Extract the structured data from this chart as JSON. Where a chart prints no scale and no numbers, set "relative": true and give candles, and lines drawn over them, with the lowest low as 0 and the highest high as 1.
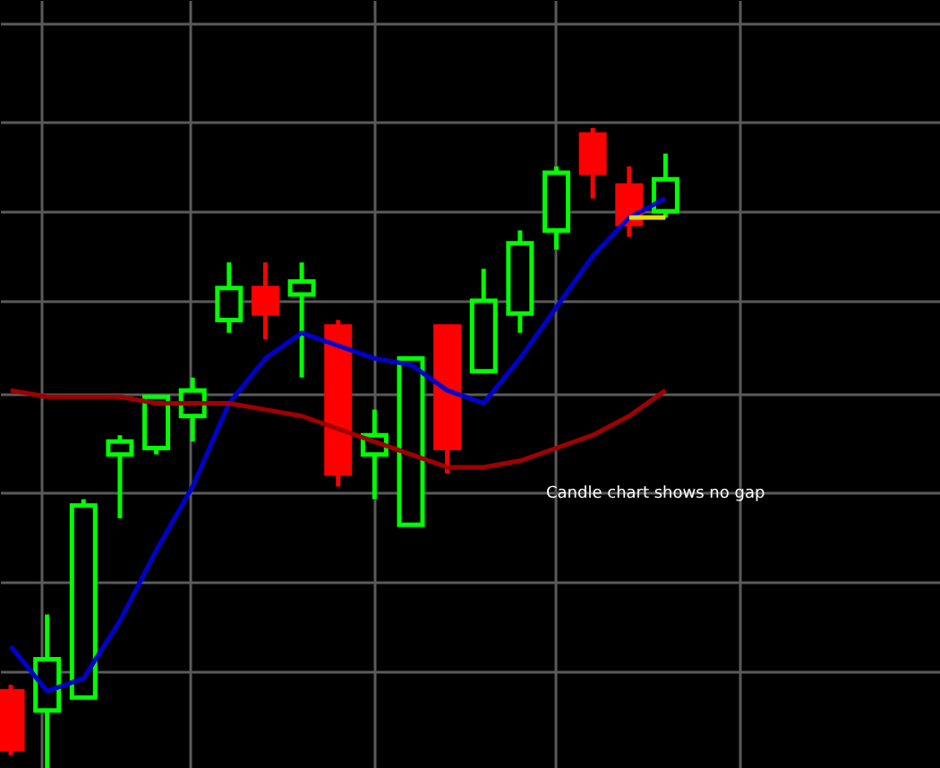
{
  "chart_data": {
    "type": "candlestick",
    "relative": true,
    "grid": true,
    "categories": [
      null,
      null,
      null,
      null,
      null,
      null,
      null,
      null,
      null,
      null,
      null,
      null,
      null,
      null,
      null,
      null,
      null,
      null,
      null
    ],
    "ohlc": [
      [
        0.12,
        0.13,
        0.02,
        0.03
      ],
      [
        0.09,
        0.24,
        0.0,
        0.17
      ],
      [
        0.11,
        0.42,
        0.11,
        0.41
      ],
      [
        0.49,
        0.52,
        0.39,
        0.51
      ],
      [
        0.5,
        0.58,
        0.49,
        0.58
      ],
      [
        0.55,
        0.61,
        0.51,
        0.59
      ],
      [
        0.7,
        0.79,
        0.68,
        0.75
      ],
      [
        0.75,
        0.79,
        0.67,
        0.71
      ],
      [
        0.74,
        0.79,
        0.61,
        0.76
      ],
      [
        0.69,
        0.7,
        0.44,
        0.46
      ],
      [
        0.49,
        0.56,
        0.42,
        0.52
      ],
      [
        0.38,
        0.64,
        0.38,
        0.64
      ],
      [
        0.69,
        0.69,
        0.46,
        0.5
      ],
      [
        0.62,
        0.78,
        0.62,
        0.73
      ],
      [
        0.71,
        0.84,
        0.68,
        0.82
      ],
      [
        0.84,
        0.94,
        0.81,
        0.93
      ],
      [
        0.99,
        1.0,
        0.89,
        0.93
      ],
      [
        0.91,
        0.94,
        0.83,
        0.85
      ],
      [
        0.87,
        0.96,
        0.86,
        0.92
      ]
    ],
    "colors": [
      "#ff0000",
      "#00ff00",
      "#00ff00",
      "#00ff00",
      "#00ff00",
      "#00ff00",
      "#00ff00",
      "#ff0000",
      "#00ff00",
      "#ff0000",
      "#00ff00",
      "#00ff00",
      "#ff0000",
      "#00ff00",
      "#00ff00",
      "#00ff00",
      "#ff0000",
      "#ff0000",
      "#00ff00"
    ],
    "series": [
      {
        "type": "line",
        "color": "#0000cc",
        "values": [
          0.19,
          0.12,
          0.14,
          0.23,
          0.34,
          0.44,
          0.57,
          0.64,
          0.68,
          0.66,
          0.64,
          0.63,
          0.59,
          0.57,
          0.64,
          0.72,
          0.8,
          0.86,
          0.89
        ]
      },
      {
        "type": "line",
        "color": "#a00000",
        "values": [
          0.59,
          0.58,
          0.58,
          0.58,
          0.57,
          0.57,
          0.57,
          0.56,
          0.55,
          0.53,
          0.51,
          0.49,
          0.47,
          0.47,
          0.48,
          0.5,
          0.52,
          0.55,
          0.59
        ]
      },
      {
        "type": "line",
        "color": "#e0e000",
        "values": [
          null,
          null,
          null,
          null,
          null,
          null,
          null,
          null,
          null,
          null,
          null,
          null,
          null,
          null,
          null,
          null,
          null,
          0.86,
          0.86
        ]
      }
    ],
    "annotations": [
      "Candle chart shows no gap"
    ]
  }
}
